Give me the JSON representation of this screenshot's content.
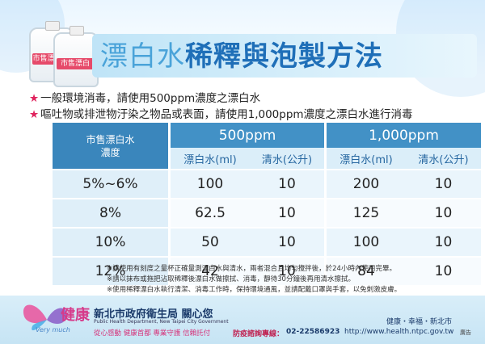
{
  "title": {
    "part1": "漂白水",
    "part2": "稀釋與",
    "part3": "泡製方法"
  },
  "bottles": {
    "label1": "市售漂白水",
    "label2": "市售漂白"
  },
  "instructions": [
    "一般環境消毒，請使用500ppm濃度之漂白水",
    "嘔吐物或排泄物汙染之物品或表面，請使用1,000ppm濃度之漂白水進行消毒"
  ],
  "table": {
    "concentration_header": "市售漂白水\n濃度",
    "groups": [
      "500ppm",
      "1,000ppm"
    ],
    "sub_headers": [
      "漂白水(ml)",
      "清水(公升)",
      "漂白水(ml)",
      "清水(公升)"
    ],
    "rows": [
      {
        "concentration": "5%~6%",
        "values": [
          "100",
          "10",
          "200",
          "10"
        ]
      },
      {
        "concentration": "8%",
        "values": [
          "62.5",
          "10",
          "125",
          "10"
        ]
      },
      {
        "concentration": "10%",
        "values": [
          "50",
          "10",
          "100",
          "10"
        ]
      },
      {
        "concentration": "12%",
        "values": [
          "42",
          "10",
          "84",
          "10"
        ]
      }
    ]
  },
  "notes": [
    "※請使用有刻度之量杯正確量測漂白水與清水，兩者混合且均勻攪拌後，於24小時內使用完畢。",
    "※請以抹布或拖把沾取稀釋後漂白水做擦拭、消毒，靜待30分鐘後再用清水擦拭。",
    "※使用稀釋漂白水執行清潔、消毒工作時，保持環境通風，並請配戴口罩與手套，以免刺激皮膚。"
  ],
  "footer": {
    "logo_word": "健康",
    "logo_en": "Very much",
    "org_name": "新北市政府衛生局 關心您",
    "org_en": "Public Health Department, New Taipei City Government",
    "slogans": "從心感動  健康首都  專業守護  信賴託付",
    "hotline_label": "防疫諮詢專線：",
    "hotline_number": "02-22586923",
    "motto": "健康・幸福・新北市",
    "url": "http://www.health.ntpc.gov.tw",
    "ad_mark": "廣告"
  },
  "colors": {
    "accent_blue": "#4291c6",
    "title_blue": "#1f6fb8",
    "star_pink": "#e0245e"
  }
}
